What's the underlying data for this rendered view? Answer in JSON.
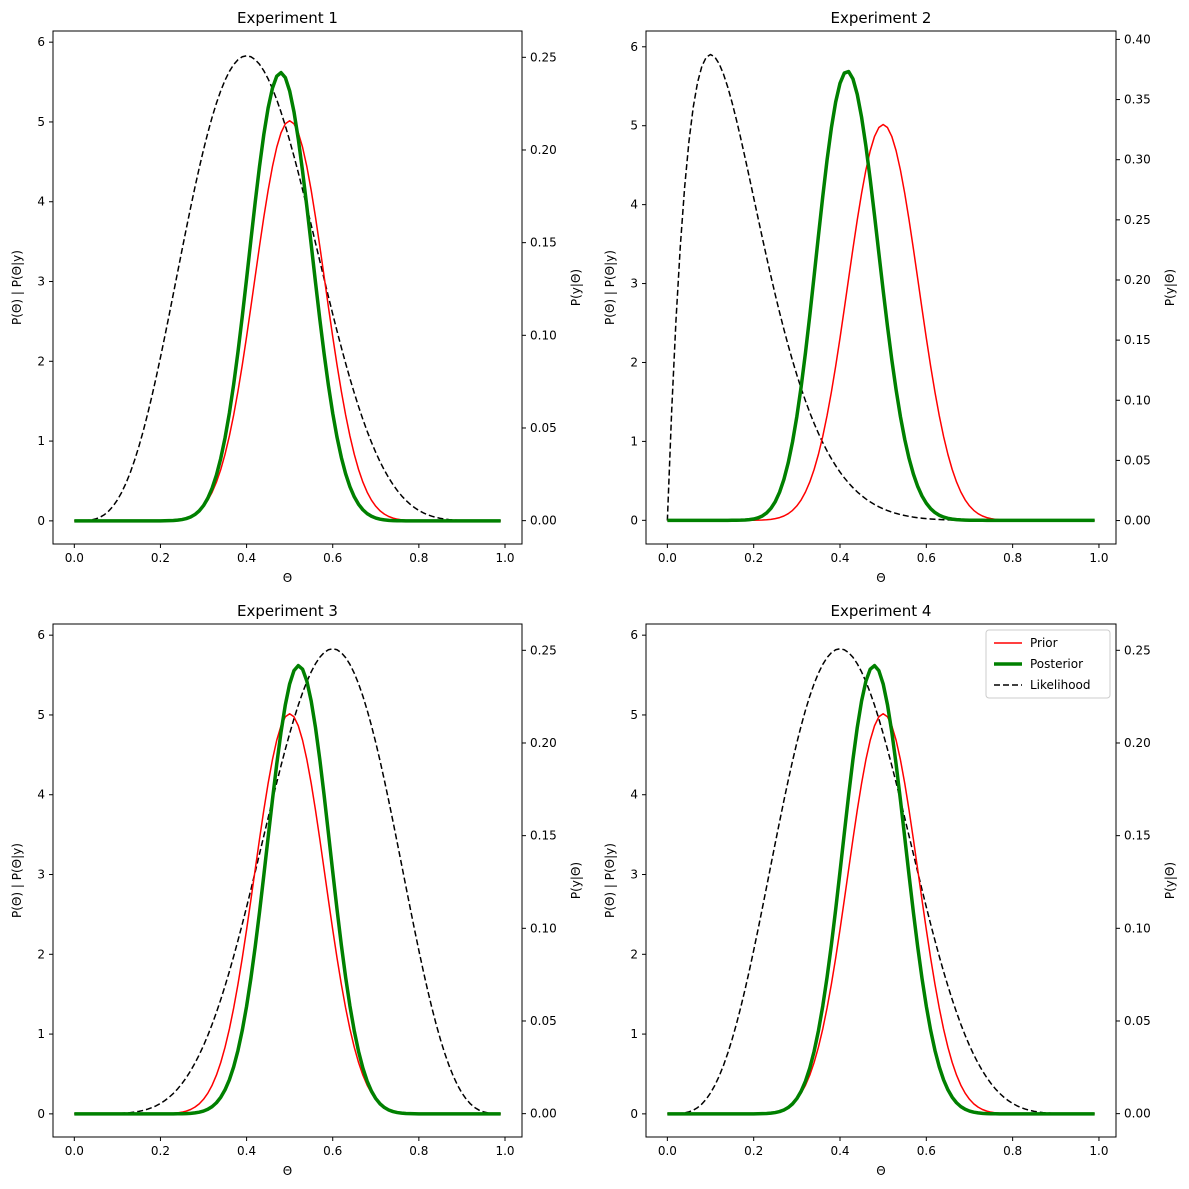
{
  "theta": [
    0,
    0.01,
    0.02,
    0.03,
    0.04,
    0.05,
    0.06,
    0.07,
    0.08,
    0.09,
    0.1,
    0.11,
    0.12,
    0.13,
    0.14,
    0.15,
    0.16,
    0.17,
    0.18,
    0.19,
    0.2,
    0.21,
    0.22,
    0.23,
    0.24,
    0.25,
    0.26,
    0.27,
    0.28,
    0.29,
    0.3,
    0.31,
    0.32,
    0.33,
    0.34,
    0.35,
    0.36,
    0.37,
    0.38,
    0.39,
    0.4,
    0.41,
    0.42,
    0.43,
    0.44,
    0.45,
    0.46,
    0.47,
    0.48,
    0.49,
    0.5,
    0.51,
    0.52,
    0.53,
    0.54,
    0.55,
    0.56,
    0.57,
    0.58,
    0.59,
    0.6,
    0.61,
    0.62,
    0.63,
    0.64,
    0.65,
    0.66,
    0.67,
    0.68,
    0.69,
    0.7,
    0.71,
    0.72,
    0.73,
    0.74,
    0.75,
    0.76,
    0.77,
    0.78,
    0.79,
    0.8,
    0.81,
    0.82,
    0.83,
    0.84,
    0.85,
    0.86,
    0.87,
    0.88,
    0.89,
    0.9,
    0.91,
    0.92,
    0.93,
    0.94,
    0.95,
    0.96,
    0.97,
    0.98,
    0.99
  ],
  "colors": {
    "prior": "#ff0000",
    "posterior": "#008000",
    "likelihood": "#000000"
  },
  "chart_data": [
    {
      "type": "line",
      "title": "Experiment 1",
      "xlabel": "Θ",
      "ylabel_left": "P(Θ) | P(Θ|y)",
      "ylabel_right": "P(y|Θ)",
      "xlim": [
        -0.0495,
        1.0395
      ],
      "ylim_left": [
        -0.29,
        6.14
      ],
      "ylim_right": [
        -0.0126,
        0.2642
      ],
      "xticks": [
        0.0,
        0.2,
        0.4,
        0.6,
        0.8,
        1.0
      ],
      "xtick_labels": [
        "0.0",
        "0.2",
        "0.4",
        "0.6",
        "0.8",
        "1.0"
      ],
      "yticks_left": [
        0,
        1,
        2,
        3,
        4,
        5,
        6
      ],
      "ytick_labels_left": [
        "0",
        "1",
        "2",
        "3",
        "4",
        "5",
        "6"
      ],
      "yticks_right": [
        0.0,
        0.05,
        0.1,
        0.15,
        0.2,
        0.25
      ],
      "ytick_labels_right": [
        "0.00",
        "0.05",
        "0.10",
        "0.15",
        "0.20",
        "0.25"
      ],
      "series": [
        {
          "kind": "prior",
          "axis": "left",
          "a": 20,
          "b": 20
        },
        {
          "kind": "posterior",
          "axis": "left",
          "a": 24,
          "b": 26
        },
        {
          "kind": "likelihood",
          "axis": "right",
          "n": 10,
          "k": 4
        }
      ]
    },
    {
      "type": "line",
      "title": "Experiment 2",
      "xlabel": "Θ",
      "ylabel_left": "P(Θ) | P(Θ|y)",
      "ylabel_right": "P(y|Θ)",
      "xlim": [
        -0.0495,
        1.0395
      ],
      "ylim_left": [
        -0.3,
        6.2
      ],
      "ylim_right": [
        -0.0195,
        0.407
      ],
      "xticks": [
        0.0,
        0.2,
        0.4,
        0.6,
        0.8,
        1.0
      ],
      "xtick_labels": [
        "0.0",
        "0.2",
        "0.4",
        "0.6",
        "0.8",
        "1.0"
      ],
      "yticks_left": [
        0,
        1,
        2,
        3,
        4,
        5,
        6
      ],
      "ytick_labels_left": [
        "0",
        "1",
        "2",
        "3",
        "4",
        "5",
        "6"
      ],
      "yticks_right": [
        0.0,
        0.05,
        0.1,
        0.15,
        0.2,
        0.25,
        0.3,
        0.35,
        0.4
      ],
      "ytick_labels_right": [
        "0.00",
        "0.05",
        "0.10",
        "0.15",
        "0.20",
        "0.25",
        "0.30",
        "0.35",
        "0.40"
      ],
      "series": [
        {
          "kind": "prior",
          "axis": "left",
          "a": 20,
          "b": 20
        },
        {
          "kind": "posterior",
          "axis": "left",
          "a": 21,
          "b": 29
        },
        {
          "kind": "likelihood",
          "axis": "right",
          "n": 10,
          "k": 1
        }
      ]
    },
    {
      "type": "line",
      "title": "Experiment 3",
      "xlabel": "Θ",
      "ylabel_left": "P(Θ) | P(Θ|y)",
      "ylabel_right": "P(y|Θ)",
      "xlim": [
        -0.0495,
        1.0395
      ],
      "ylim_left": [
        -0.29,
        6.14
      ],
      "ylim_right": [
        -0.0126,
        0.2642
      ],
      "xticks": [
        0.0,
        0.2,
        0.4,
        0.6,
        0.8,
        1.0
      ],
      "xtick_labels": [
        "0.0",
        "0.2",
        "0.4",
        "0.6",
        "0.8",
        "1.0"
      ],
      "yticks_left": [
        0,
        1,
        2,
        3,
        4,
        5,
        6
      ],
      "ytick_labels_left": [
        "0",
        "1",
        "2",
        "3",
        "4",
        "5",
        "6"
      ],
      "yticks_right": [
        0.0,
        0.05,
        0.1,
        0.15,
        0.2,
        0.25
      ],
      "ytick_labels_right": [
        "0.00",
        "0.05",
        "0.10",
        "0.15",
        "0.20",
        "0.25"
      ],
      "series": [
        {
          "kind": "prior",
          "axis": "left",
          "a": 20,
          "b": 20
        },
        {
          "kind": "posterior",
          "axis": "left",
          "a": 26,
          "b": 24
        },
        {
          "kind": "likelihood",
          "axis": "right",
          "n": 10,
          "k": 6
        }
      ]
    },
    {
      "type": "line",
      "title": "Experiment 4",
      "xlabel": "Θ",
      "ylabel_left": "P(Θ) | P(Θ|y)",
      "ylabel_right": "P(y|Θ)",
      "xlim": [
        -0.0495,
        1.0395
      ],
      "ylim_left": [
        -0.29,
        6.14
      ],
      "ylim_right": [
        -0.0126,
        0.2642
      ],
      "xticks": [
        0.0,
        0.2,
        0.4,
        0.6,
        0.8,
        1.0
      ],
      "xtick_labels": [
        "0.0",
        "0.2",
        "0.4",
        "0.6",
        "0.8",
        "1.0"
      ],
      "yticks_left": [
        0,
        1,
        2,
        3,
        4,
        5,
        6
      ],
      "ytick_labels_left": [
        "0",
        "1",
        "2",
        "3",
        "4",
        "5",
        "6"
      ],
      "yticks_right": [
        0.0,
        0.05,
        0.1,
        0.15,
        0.2,
        0.25
      ],
      "ytick_labels_right": [
        "0.00",
        "0.05",
        "0.10",
        "0.15",
        "0.20",
        "0.25"
      ],
      "legend": {
        "position": "upper right",
        "entries": [
          "Prior",
          "Posterior",
          "Likelihood"
        ]
      },
      "series": [
        {
          "kind": "prior",
          "axis": "left",
          "a": 20,
          "b": 20
        },
        {
          "kind": "posterior",
          "axis": "left",
          "a": 24,
          "b": 26
        },
        {
          "kind": "likelihood",
          "axis": "right",
          "n": 10,
          "k": 4
        }
      ]
    }
  ]
}
